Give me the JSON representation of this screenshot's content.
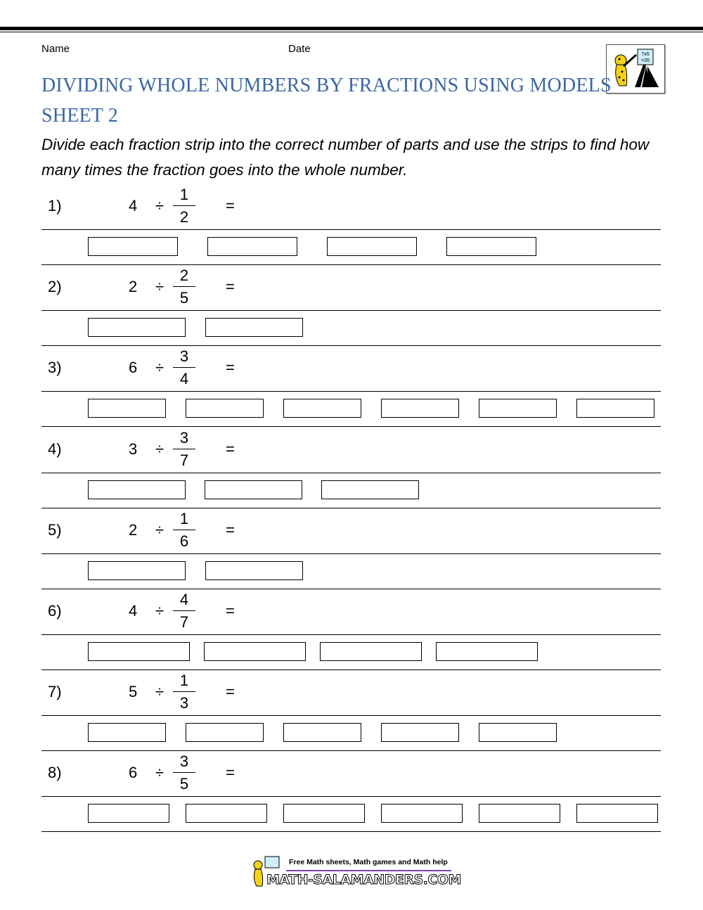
{
  "header": {
    "name_label": "Name",
    "date_label": "Date"
  },
  "title": {
    "line1": "DIVIDING WHOLE NUMBERS BY FRACTIONS USING MODELS",
    "line2": "SHEET 2"
  },
  "instructions": "Divide each fraction strip into the correct number of parts and use the strips to find how many times the fraction goes into the whole number.",
  "problems": [
    {
      "number": "1)",
      "whole": "4",
      "operator": "÷",
      "numerator": "1",
      "denominator": "2",
      "equals": "=",
      "strips": 4
    },
    {
      "number": "2)",
      "whole": "2",
      "operator": "÷",
      "numerator": "2",
      "denominator": "5",
      "equals": "=",
      "strips": 2
    },
    {
      "number": "3)",
      "whole": "6",
      "operator": "÷",
      "numerator": "3",
      "denominator": "4",
      "equals": "=",
      "strips": 6
    },
    {
      "number": "4)",
      "whole": "3",
      "operator": "÷",
      "numerator": "3",
      "denominator": "7",
      "equals": "=",
      "strips": 3
    },
    {
      "number": "5)",
      "whole": "2",
      "operator": "÷",
      "numerator": "1",
      "denominator": "6",
      "equals": "=",
      "strips": 2
    },
    {
      "number": "6)",
      "whole": "4",
      "operator": "÷",
      "numerator": "4",
      "denominator": "7",
      "equals": "=",
      "strips": 4
    },
    {
      "number": "7)",
      "whole": "5",
      "operator": "÷",
      "numerator": "1",
      "denominator": "3",
      "equals": "=",
      "strips": 5
    },
    {
      "number": "8)",
      "whole": "6",
      "operator": "÷",
      "numerator": "3",
      "denominator": "5",
      "equals": "=",
      "strips": 6
    }
  ],
  "footer": {
    "tagline": "Free Math sheets, Math games and Math help",
    "site": "MATH-SALAMANDERS.COM",
    "accent": "#7b3fb5"
  },
  "logo": {
    "board_text": "7x5 =35"
  }
}
